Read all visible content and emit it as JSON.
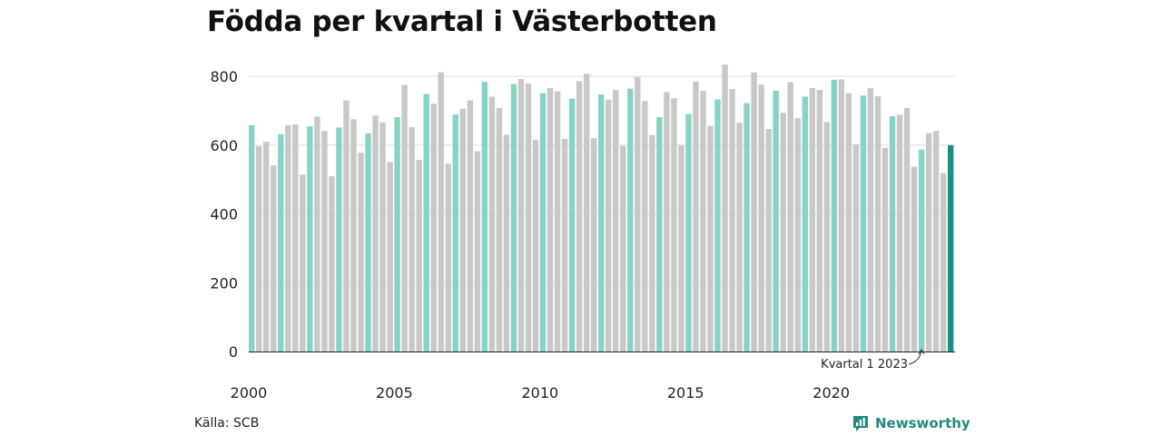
{
  "title": "Födda per kvartal i Västerbotten",
  "source": "Källa: SCB",
  "brand": "Newsworthy",
  "colors": {
    "q1": "#88d3c8",
    "other": "#c8c8c8",
    "latest": "#1b8f84",
    "grid": "#dddddd",
    "axis": "#222222",
    "brand": "#1f8a7d"
  },
  "chart_data": {
    "type": "bar",
    "x_start_year": 2000,
    "quarters_per_year": 4,
    "ylim": [
      0,
      800
    ],
    "yticks": [
      "0",
      "200",
      "400",
      "600",
      "800"
    ],
    "xtick_labels": [
      "2000",
      "2005",
      "2010",
      "2015",
      "2020"
    ],
    "grid": true,
    "annotation": "Kvartal 1 2023",
    "values": [
      658,
      597,
      610,
      541,
      632,
      658,
      660,
      514,
      655,
      683,
      641,
      510,
      651,
      730,
      675,
      578,
      634,
      686,
      666,
      551,
      681,
      775,
      652,
      557,
      749,
      720,
      812,
      546,
      689,
      706,
      730,
      582,
      784,
      741,
      708,
      630,
      778,
      792,
      779,
      615,
      751,
      766,
      756,
      618,
      735,
      786,
      807,
      620,
      747,
      732,
      760,
      598,
      764,
      798,
      728,
      629,
      681,
      754,
      736,
      600,
      690,
      785,
      758,
      656,
      733,
      834,
      763,
      665,
      722,
      811,
      776,
      647,
      758,
      694,
      783,
      678,
      741,
      766,
      760,
      667,
      790,
      791,
      751,
      602,
      744,
      766,
      742,
      592,
      684,
      688,
      708,
      537,
      587,
      635,
      641,
      519,
      600
    ]
  }
}
